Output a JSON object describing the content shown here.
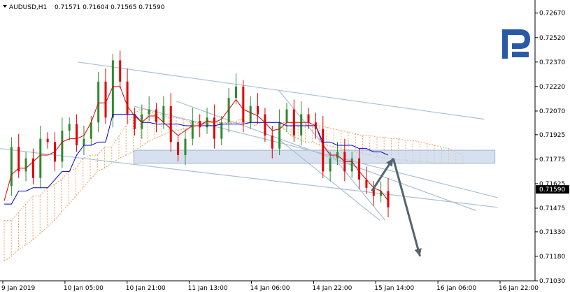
{
  "header": {
    "symbol_label": "AUDUSD,H1",
    "ohlc": "0.71571 0.71604 0.71565 0.71590"
  },
  "brand": {
    "logo_icon": "brand-r-logo-icon",
    "color": "#2a5aa6"
  },
  "colors": {
    "bull": "#2f8a2f",
    "bear": "#e00000",
    "tenkan": "#e00000",
    "kijun": "#0000cc",
    "cloud": "#f0a060",
    "channel": "#a8c0d4",
    "zone_fill": "#c8d6e8",
    "arrow": "#56646f",
    "price_tag": "#000000"
  },
  "chart_data": {
    "type": "candlestick",
    "symbol": "AUDUSD",
    "timeframe": "H1",
    "last_price": "0.71590",
    "ylim": [
      0.7103,
      0.7275
    ],
    "y_ticks": [
      "0.72670",
      "0.72520",
      "0.72370",
      "0.72220",
      "0.72070",
      "0.71925",
      "0.71775",
      "0.71625",
      "0.71475",
      "0.71330",
      "0.71180",
      "0.71030"
    ],
    "x_ticks": [
      "9 Jan 2019",
      "10 Jan 05:00",
      "10 Jan 21:00",
      "11 Jan 13:00",
      "14 Jan 06:00",
      "14 Jan 22:00",
      "15 Jan 14:00",
      "16 Jan 06:00",
      "16 Jan 22:00"
    ],
    "price_path": [
      0.7161,
      0.7185,
      0.717,
      0.7178,
      0.7166,
      0.719,
      0.7188,
      0.7176,
      0.7195,
      0.7199,
      0.7186,
      0.719,
      0.72,
      0.7225,
      0.7203,
      0.7238,
      0.7225,
      0.7205,
      0.7196,
      0.7205,
      0.7208,
      0.72,
      0.721,
      0.7188,
      0.718,
      0.719,
      0.7201,
      0.7197,
      0.7203,
      0.719,
      0.72,
      0.7215,
      0.7222,
      0.72,
      0.721,
      0.7205,
      0.7192,
      0.7184,
      0.72,
      0.7208,
      0.7192,
      0.7205,
      0.72,
      0.7196,
      0.717,
      0.7178,
      0.7182,
      0.717,
      0.7178,
      0.7165,
      0.716,
      0.7155,
      0.7158,
      0.7148
    ],
    "tenkan_sen": [
      0.7152,
      0.7168,
      0.7172,
      0.7172,
      0.7176,
      0.718,
      0.718,
      0.7182,
      0.7188,
      0.719,
      0.719,
      0.7192,
      0.72,
      0.7212,
      0.7212,
      0.7222,
      0.7222,
      0.721,
      0.7204,
      0.72,
      0.7204,
      0.7204,
      0.72,
      0.7196,
      0.7192,
      0.7195,
      0.7198,
      0.7198,
      0.7201,
      0.72,
      0.7202,
      0.7208,
      0.7214,
      0.7208,
      0.7206,
      0.7204,
      0.72,
      0.7195,
      0.7196,
      0.72,
      0.72,
      0.72,
      0.72,
      0.7198,
      0.7186,
      0.718,
      0.718,
      0.7176,
      0.7176,
      0.717,
      0.7165,
      0.716,
      0.7158,
      0.7152
    ],
    "kijun_sen": [
      0.715,
      0.715,
      0.7158,
      0.7158,
      0.716,
      0.716,
      0.716,
      0.7165,
      0.717,
      0.717,
      0.718,
      0.7186,
      0.7186,
      0.7188,
      0.7188,
      0.7205,
      0.7205,
      0.7205,
      0.7205,
      0.72,
      0.72,
      0.7199,
      0.7199,
      0.7199,
      0.7199,
      0.7198,
      0.7198,
      0.7198,
      0.7198,
      0.7198,
      0.7199,
      0.7199,
      0.7199,
      0.7199,
      0.72,
      0.72,
      0.72,
      0.72,
      0.72,
      0.7198,
      0.7198,
      0.7198,
      0.7198,
      0.7198,
      0.7188,
      0.7188,
      0.7186,
      0.7186,
      0.7186,
      0.7184,
      0.7184,
      0.7182,
      0.7182,
      0.718
    ],
    "cloud_span_a": [
      0.714,
      0.714,
      0.7145,
      0.715,
      0.7155,
      0.7155,
      0.716,
      0.7162,
      0.7165,
      0.717,
      0.7172,
      0.7178,
      0.718,
      0.718,
      0.7185,
      0.7185,
      0.7192,
      0.7198,
      0.7205,
      0.7208,
      0.7208,
      0.7205,
      0.7205,
      0.7203,
      0.7203,
      0.7202,
      0.72,
      0.72,
      0.72,
      0.72,
      0.7199,
      0.7199,
      0.72,
      0.7202,
      0.72,
      0.7198,
      0.72,
      0.72,
      0.72,
      0.7196,
      0.7192,
      0.719,
      0.7188,
      0.7188,
      0.7186,
      0.7186,
      0.7185,
      0.7184,
      0.7183,
      0.7182,
      0.7181,
      0.718,
      0.7179,
      0.7178,
      0.7178,
      0.7177,
      0.7177,
      0.7176,
      0.7176,
      0.7176,
      0.7175,
      0.7175,
      0.7175,
      0.7175,
      0.7175
    ],
    "cloud_span_b": [
      0.7115,
      0.7118,
      0.7122,
      0.7125,
      0.7128,
      0.7132,
      0.7136,
      0.714,
      0.7145,
      0.715,
      0.7155,
      0.716,
      0.7165,
      0.717,
      0.7172,
      0.7175,
      0.7178,
      0.718,
      0.7182,
      0.7185,
      0.7188,
      0.719,
      0.7192,
      0.7194,
      0.7195,
      0.7196,
      0.7197,
      0.7198,
      0.7199,
      0.72,
      0.72,
      0.72,
      0.72,
      0.72,
      0.72,
      0.72,
      0.72,
      0.72,
      0.72,
      0.72,
      0.72,
      0.7199,
      0.7199,
      0.7198,
      0.7198,
      0.7197,
      0.7196,
      0.7195,
      0.7194,
      0.7193,
      0.7192,
      0.7192,
      0.7191,
      0.7191,
      0.719,
      0.719,
      0.7189,
      0.7189,
      0.7188,
      0.7187,
      0.7186,
      0.7185,
      0.7184,
      0.7182,
      0.718
    ],
    "channel_upper": [
      [
        0.145,
        0.7237
      ],
      [
        0.905,
        0.7202
      ]
    ],
    "channel_lower": [
      [
        0.25,
        0.721
      ],
      [
        0.93,
        0.7154
      ]
    ],
    "channel_steep_1": [
      [
        0.33,
        0.7213
      ],
      [
        0.89,
        0.7146
      ]
    ],
    "channel_steep_2": [
      [
        0.52,
        0.722
      ],
      [
        0.72,
        0.714
      ]
    ],
    "channel_steep_3": [
      [
        0.52,
        0.719
      ],
      [
        0.71,
        0.714
      ]
    ],
    "channel_long_low": [
      [
        0.0,
        0.7184
      ],
      [
        0.93,
        0.7148
      ]
    ],
    "support_zone": {
      "y_top": 0.7183,
      "y_bottom": 0.7175,
      "x_from": 0.25,
      "x_to": 0.925
    },
    "forecast_arrows": [
      {
        "from": [
          0.695,
          0.7158
        ],
        "to": [
          0.735,
          0.7178
        ]
      },
      {
        "from": [
          0.735,
          0.7178
        ],
        "to": [
          0.785,
          0.7118
        ]
      }
    ],
    "grid": false
  }
}
